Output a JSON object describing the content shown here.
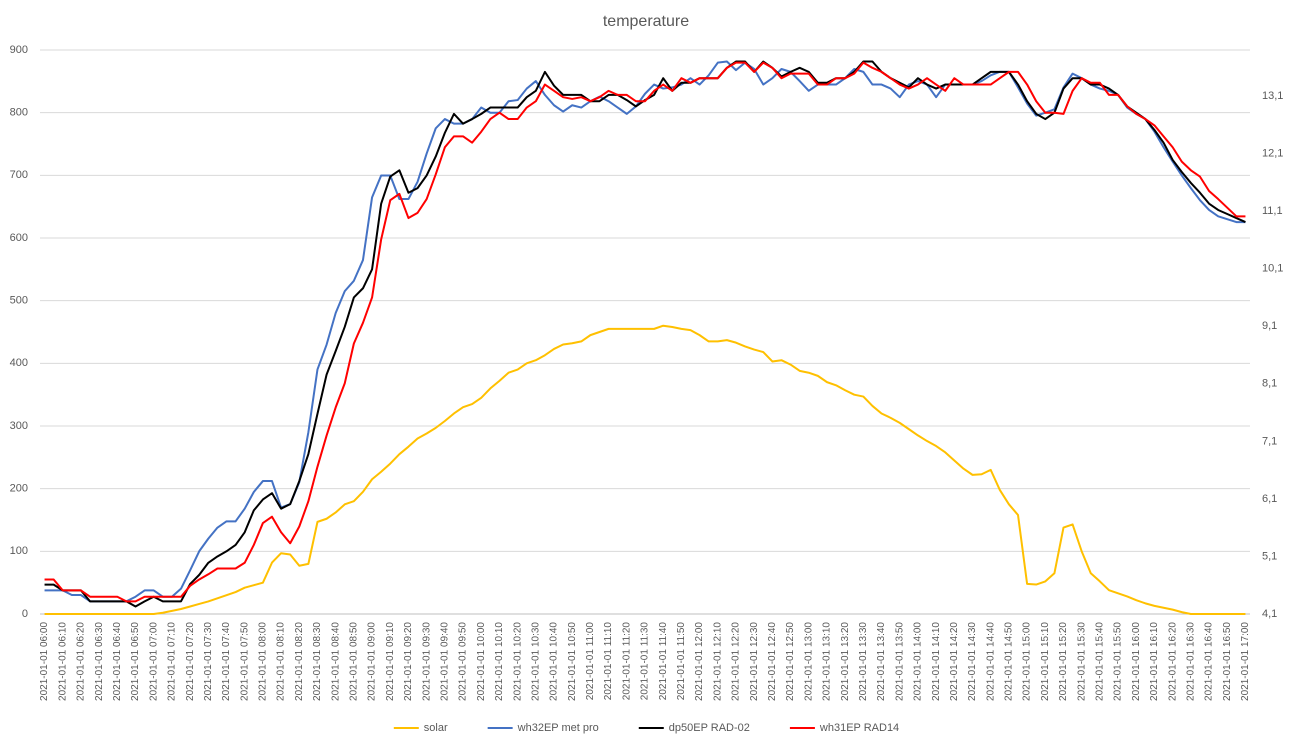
{
  "chart_data": {
    "type": "line",
    "title": "temperature",
    "categories": [
      "2021-01-01 06:00",
      null,
      "2021-01-01 06:10",
      null,
      "2021-01-01 06:20",
      null,
      "2021-01-01 06:30",
      null,
      "2021-01-01 06:40",
      null,
      "2021-01-01 06:50",
      null,
      "2021-01-01 07:00",
      null,
      "2021-01-01 07:10",
      null,
      "2021-01-01 07:20",
      null,
      "2021-01-01 07:30",
      null,
      "2021-01-01 07:40",
      null,
      "2021-01-01 07:50",
      null,
      "2021-01-01 08:00",
      null,
      "2021-01-01 08:10",
      null,
      "2021-01-01 08:20",
      null,
      "2021-01-01 08:30",
      null,
      "2021-01-01 08:40",
      null,
      "2021-01-01 08:50",
      null,
      "2021-01-01 09:00",
      null,
      "2021-01-01 09:10",
      null,
      "2021-01-01 09:20",
      null,
      "2021-01-01 09:30",
      null,
      "2021-01-01 09:40",
      null,
      "2021-01-01 09:50",
      null,
      "2021-01-01 10:00",
      null,
      "2021-01-01 10:10",
      null,
      "2021-01-01 10:20",
      null,
      "2021-01-01 10:30",
      null,
      "2021-01-01 10:40",
      null,
      "2021-01-01 10:50",
      null,
      "2021-01-01 11:00",
      null,
      "2021-01-01 11:10",
      null,
      "2021-01-01 11:20",
      null,
      "2021-01-01 11:30",
      null,
      "2021-01-01 11:40",
      null,
      "2021-01-01 11:50",
      null,
      "2021-01-01 12:00",
      null,
      "2021-01-01 12:10",
      null,
      "2021-01-01 12:20",
      null,
      "2021-01-01 12:30",
      null,
      "2021-01-01 12:40",
      null,
      "2021-01-01 12:50",
      null,
      "2021-01-01 13:00",
      null,
      "2021-01-01 13:10",
      null,
      "2021-01-01 13:20",
      null,
      "2021-01-01 13:30",
      null,
      "2021-01-01 13:40",
      null,
      "2021-01-01 13:50",
      null,
      "2021-01-01 14:00",
      null,
      "2021-01-01 14:10",
      null,
      "2021-01-01 14:20",
      null,
      "2021-01-01 14:30",
      null,
      "2021-01-01 14:40",
      null,
      "2021-01-01 14:50",
      null,
      "2021-01-01 15:00",
      null,
      "2021-01-01 15:10",
      null,
      "2021-01-01 15:20",
      null,
      "2021-01-01 15:30",
      null,
      "2021-01-01 15:40",
      null,
      "2021-01-01 15:50",
      null,
      "2021-01-01 16:00",
      null,
      "2021-01-01 16:10",
      null,
      "2021-01-01 16:20",
      null,
      "2021-01-01 16:30",
      null,
      "2021-01-01 16:40",
      null,
      "2021-01-01 16:50",
      null,
      "2021-01-01 17:00"
    ],
    "series": [
      {
        "name": "solar",
        "color": "#ffc000",
        "values": [
          0,
          0,
          0,
          0,
          0,
          0,
          0,
          0,
          0,
          0,
          0,
          0,
          0,
          2,
          5,
          8,
          12,
          16,
          20,
          25,
          30,
          35,
          42,
          46,
          50,
          82,
          97,
          95,
          77,
          80,
          147,
          152,
          162,
          175,
          180,
          195,
          215,
          227,
          240,
          255,
          267,
          280,
          288,
          297,
          308,
          320,
          330,
          335,
          345,
          360,
          372,
          385,
          390,
          400,
          405,
          413,
          423,
          430,
          432,
          435,
          445,
          450,
          455,
          455,
          455,
          455,
          455,
          455,
          460,
          458,
          455,
          453,
          445,
          435,
          435,
          437,
          433,
          427,
          422,
          418,
          403,
          405,
          398,
          388,
          385,
          380,
          370,
          365,
          357,
          350,
          347,
          332,
          320,
          313,
          305,
          295,
          285,
          276,
          268,
          258,
          245,
          232,
          222,
          223,
          230,
          198,
          175,
          158,
          48,
          47,
          52,
          65,
          138,
          143,
          100,
          65,
          52,
          38,
          33,
          28,
          22,
          17,
          13,
          10,
          7,
          3,
          0,
          0,
          0,
          0,
          0,
          0,
          0
        ]
      },
      {
        "name": "wh32EP met pro",
        "color": "#4472c4",
        "axis": "y2",
        "values": [
          4.51,
          4.51,
          4.51,
          4.43,
          4.43,
          4.32,
          4.32,
          4.32,
          4.32,
          4.32,
          4.4,
          4.51,
          4.51,
          4.4,
          4.4,
          4.54,
          4.86,
          5.19,
          5.41,
          5.6,
          5.71,
          5.71,
          5.93,
          6.22,
          6.41,
          6.41,
          5.95,
          6.01,
          6.39,
          7.26,
          8.35,
          8.78,
          9.33,
          9.71,
          9.89,
          10.25,
          11.34,
          11.72,
          11.72,
          11.31,
          11.31,
          11.61,
          12.1,
          12.54,
          12.7,
          12.62,
          12.62,
          12.7,
          12.9,
          12.81,
          12.81,
          13.01,
          13.03,
          13.23,
          13.36,
          13.12,
          12.94,
          12.83,
          12.94,
          12.9,
          13.01,
          13.09,
          13.01,
          12.9,
          12.79,
          12.92,
          13.14,
          13.3,
          13.23,
          13.25,
          13.3,
          13.41,
          13.3,
          13.46,
          13.68,
          13.7,
          13.55,
          13.68,
          13.57,
          13.3,
          13.41,
          13.57,
          13.52,
          13.36,
          13.19,
          13.3,
          13.3,
          13.3,
          13.41,
          13.57,
          13.52,
          13.3,
          13.3,
          13.23,
          13.08,
          13.3,
          13.36,
          13.3,
          13.08,
          13.3,
          13.3,
          13.3,
          13.3,
          13.36,
          13.46,
          13.52,
          13.52,
          13.25,
          12.97,
          12.76,
          12.81,
          12.87,
          13.25,
          13.49,
          13.41,
          13.3,
          13.23,
          13.19,
          13.12,
          12.9,
          12.79,
          12.7,
          12.48,
          12.21,
          11.96,
          11.72,
          11.5,
          11.29,
          11.12,
          11.01,
          10.96,
          10.91,
          10.91
        ]
      },
      {
        "name": "dp50EP RAD-02",
        "color": "#000000",
        "axis": "y2",
        "values": [
          4.61,
          4.61,
          4.51,
          4.51,
          4.51,
          4.32,
          4.32,
          4.32,
          4.32,
          4.32,
          4.23,
          4.32,
          4.4,
          4.32,
          4.32,
          4.32,
          4.62,
          4.78,
          4.99,
          5.1,
          5.19,
          5.3,
          5.52,
          5.9,
          6.09,
          6.2,
          5.93,
          6.01,
          6.41,
          6.88,
          7.58,
          8.26,
          8.67,
          9.09,
          9.6,
          9.76,
          10.09,
          11.23,
          11.7,
          11.81,
          11.42,
          11.5,
          11.72,
          12.05,
          12.46,
          12.79,
          12.62,
          12.7,
          12.79,
          12.9,
          12.9,
          12.9,
          12.9,
          13.08,
          13.19,
          13.52,
          13.28,
          13.12,
          13.12,
          13.12,
          13.01,
          13.01,
          13.12,
          13.12,
          13.03,
          12.92,
          13.03,
          13.12,
          13.41,
          13.19,
          13.33,
          13.33,
          13.41,
          13.41,
          13.41,
          13.59,
          13.7,
          13.7,
          13.52,
          13.7,
          13.59,
          13.44,
          13.52,
          13.59,
          13.52,
          13.33,
          13.33,
          13.41,
          13.41,
          13.52,
          13.7,
          13.7,
          13.52,
          13.41,
          13.33,
          13.25,
          13.41,
          13.3,
          13.23,
          13.3,
          13.3,
          13.3,
          13.3,
          13.41,
          13.52,
          13.52,
          13.52,
          13.3,
          13.01,
          12.79,
          12.7,
          12.81,
          13.23,
          13.41,
          13.41,
          13.3,
          13.3,
          13.23,
          13.12,
          12.92,
          12.81,
          12.7,
          12.51,
          12.29,
          11.99,
          11.78,
          11.59,
          11.42,
          11.23,
          11.12,
          11.05,
          10.98,
          10.91
        ]
      },
      {
        "name": "wh31EP RAD14",
        "color": "#ff0000",
        "axis": "y2",
        "values": [
          4.7,
          4.7,
          4.51,
          4.51,
          4.51,
          4.4,
          4.4,
          4.4,
          4.4,
          4.32,
          4.32,
          4.4,
          4.4,
          4.4,
          4.4,
          4.4,
          4.59,
          4.7,
          4.79,
          4.89,
          4.89,
          4.89,
          4.99,
          5.3,
          5.68,
          5.79,
          5.52,
          5.33,
          5.62,
          6.06,
          6.66,
          7.2,
          7.69,
          8.11,
          8.8,
          9.16,
          9.6,
          10.61,
          11.29,
          11.4,
          10.98,
          11.07,
          11.31,
          11.74,
          12.21,
          12.4,
          12.4,
          12.29,
          12.48,
          12.7,
          12.81,
          12.7,
          12.7,
          12.9,
          13.01,
          13.3,
          13.19,
          13.08,
          13.05,
          13.08,
          13.01,
          13.08,
          13.19,
          13.12,
          13.12,
          13.01,
          13.01,
          13.19,
          13.3,
          13.19,
          13.41,
          13.33,
          13.41,
          13.41,
          13.41,
          13.59,
          13.68,
          13.68,
          13.52,
          13.68,
          13.59,
          13.41,
          13.49,
          13.49,
          13.49,
          13.3,
          13.3,
          13.41,
          13.41,
          13.49,
          13.68,
          13.59,
          13.52,
          13.41,
          13.3,
          13.23,
          13.3,
          13.41,
          13.3,
          13.19,
          13.41,
          13.3,
          13.3,
          13.3,
          13.3,
          13.41,
          13.52,
          13.52,
          13.3,
          13.01,
          12.81,
          12.81,
          12.79,
          13.19,
          13.41,
          13.33,
          13.33,
          13.12,
          13.12,
          12.92,
          12.79,
          12.7,
          12.59,
          12.4,
          12.21,
          11.96,
          11.81,
          11.7,
          11.45,
          11.31,
          11.16,
          11.01,
          11.01
        ]
      }
    ],
    "ylim": [
      0,
      900
    ],
    "yticks": [
      0,
      100,
      200,
      300,
      400,
      500,
      600,
      700,
      800,
      900
    ],
    "y2lim": [
      4.1,
      13.9
    ],
    "y2ticks": [
      {
        "value": 4.1,
        "label": "4,1"
      },
      {
        "value": 5.1,
        "label": "5,1"
      },
      {
        "value": 6.1,
        "label": "6,1"
      },
      {
        "value": 7.1,
        "label": "7,1"
      },
      {
        "value": 8.1,
        "label": "8,1"
      },
      {
        "value": 9.1,
        "label": "9,1"
      },
      {
        "value": 10.1,
        "label": "10,1"
      },
      {
        "value": 11.1,
        "label": "11,1"
      },
      {
        "value": 12.1,
        "label": "12,1"
      },
      {
        "value": 13.1,
        "label": "13,1"
      }
    ],
    "grid": true,
    "legend": "bottom"
  }
}
